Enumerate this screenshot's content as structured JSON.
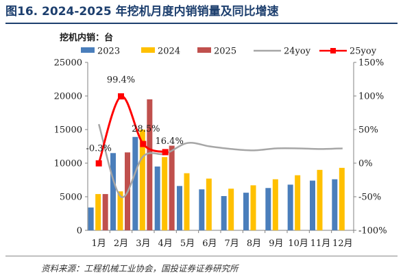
{
  "figure": {
    "label": "图16.",
    "title": "2024-2025 年挖机月度内销销量及同比增速",
    "unit_note": "挖机内销：台",
    "source": "资料来源：工程机械工业协会，国投证券证券研究所"
  },
  "chart_data": {
    "type": "bar",
    "categories": [
      "1月",
      "2月",
      "3月",
      "4月",
      "5月",
      "6月",
      "7月",
      "8月",
      "9月",
      "10月",
      "11月",
      "12月"
    ],
    "series": [
      {
        "name": "2023",
        "kind": "bar",
        "axis": "left",
        "color": "#4a7ebb",
        "values": [
          3400,
          11500,
          13900,
          9500,
          6600,
          6100,
          5100,
          5600,
          6300,
          6800,
          7400,
          7600
        ]
      },
      {
        "name": "2024",
        "kind": "bar",
        "axis": "left",
        "color": "#ffc000",
        "values": [
          5400,
          5800,
          15000,
          10900,
          8500,
          7700,
          6200,
          6700,
          7600,
          8200,
          9000,
          9300
        ]
      },
      {
        "name": "2025",
        "kind": "bar",
        "axis": "left",
        "color": "#c0504d",
        "values": [
          5400,
          11600,
          19500,
          12600,
          null,
          null,
          null,
          null,
          null,
          null,
          null,
          null
        ]
      },
      {
        "name": "24yoy",
        "kind": "line",
        "axis": "right",
        "color": "#a6a6a6",
        "values": [
          58,
          -50,
          10,
          14,
          30,
          25,
          21,
          19,
          22,
          22,
          21,
          22
        ]
      },
      {
        "name": "25yoy",
        "kind": "line",
        "axis": "right",
        "color": "#ff0000",
        "values": [
          -0.3,
          99.4,
          28.5,
          16.4,
          null,
          null,
          null,
          null,
          null,
          null,
          null,
          null
        ]
      }
    ],
    "annotations": [
      {
        "series": "25yoy",
        "index": 0,
        "text": "-0.3%"
      },
      {
        "series": "25yoy",
        "index": 1,
        "text": "99.4%"
      },
      {
        "series": "25yoy",
        "index": 2,
        "text": "28.5%"
      },
      {
        "series": "25yoy",
        "index": 3,
        "text": "16.4%"
      }
    ],
    "ylim_left": [
      0,
      25000
    ],
    "yticks_left": [
      "0",
      "5000",
      "10000",
      "15000",
      "20000",
      "25000"
    ],
    "ylim_right": [
      -100,
      150
    ],
    "yticks_right": [
      "-100%",
      "-50%",
      "0%",
      "50%",
      "100%",
      "150%"
    ],
    "grid": false,
    "legend": "top"
  }
}
